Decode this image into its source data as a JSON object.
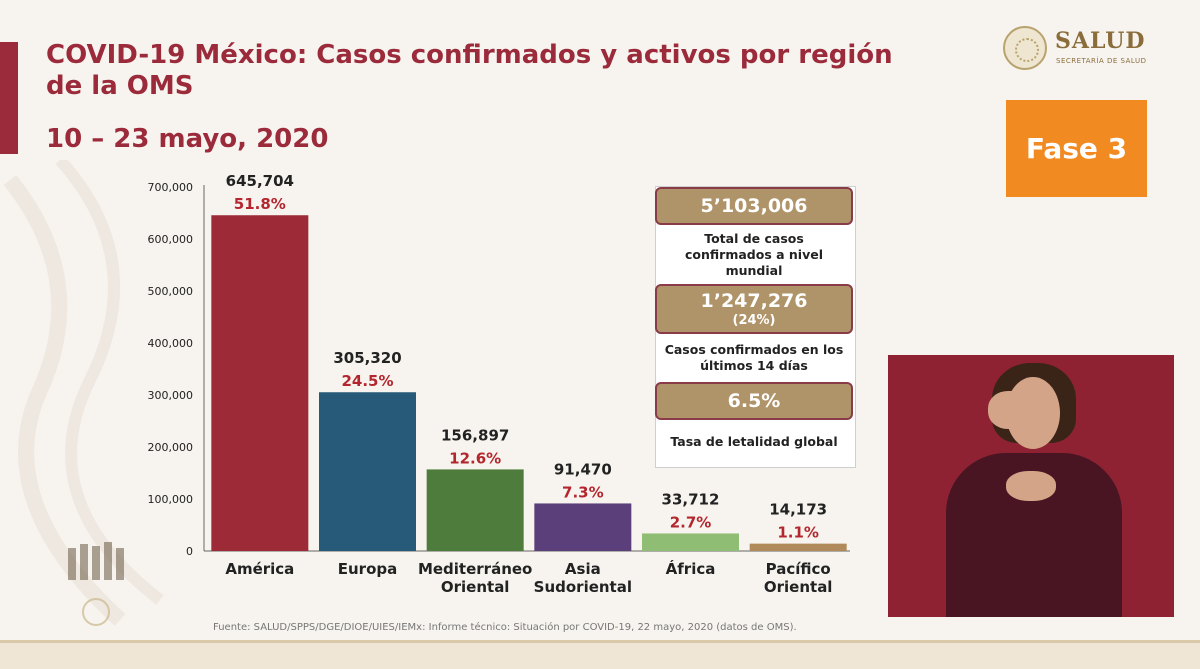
{
  "header": {
    "title": "COVID-19 México: Casos confirmados y activos por región de la OMS",
    "subtitle": "10 – 23 mayo, 2020"
  },
  "brand": {
    "logo_text": "SALUD",
    "logo_subtext": "SECRETARÍA DE SALUD",
    "phase_label": "Fase 3"
  },
  "colors": {
    "title": "#9b2a3b",
    "phase_bg": "#f28a22",
    "pill_bg": "#b09469",
    "pill_border": "#8a3b48",
    "percent_text": "#b3262e",
    "video_bg": "#8e2233"
  },
  "chart_data": {
    "type": "bar",
    "title": "COVID-19 México: Casos confirmados y activos por región de la OMS",
    "xlabel": "",
    "ylabel": "",
    "ylim": [
      0,
      700000
    ],
    "yticks": [
      0,
      100000,
      200000,
      300000,
      400000,
      500000,
      600000,
      700000
    ],
    "ytick_labels": [
      "0",
      "100,000",
      "200,000",
      "300,000",
      "400,000",
      "500,000",
      "600,000",
      "700,000"
    ],
    "categories": [
      {
        "line1": "América",
        "line2": ""
      },
      {
        "line1": "Europa",
        "line2": ""
      },
      {
        "line1": "Mediterráneo",
        "line2": "Oriental"
      },
      {
        "line1": "Asia",
        "line2": "Sudoriental"
      },
      {
        "line1": "África",
        "line2": ""
      },
      {
        "line1": "Pacífico",
        "line2": "Oriental"
      }
    ],
    "values": [
      645704,
      305320,
      156897,
      91470,
      33712,
      14173
    ],
    "value_labels": [
      "645,704",
      "305,320",
      "156,897",
      "91,470",
      "33,712",
      "14,173"
    ],
    "percent_labels": [
      "51.8%",
      "24.5%",
      "12.6%",
      "7.3%",
      "2.7%",
      "1.1%"
    ],
    "bar_colors": [
      "#9c2b37",
      "#275a78",
      "#4d7c3c",
      "#5b3f7a",
      "#8ebd73",
      "#b08a5a"
    ],
    "grid": false,
    "legend": "none"
  },
  "stats": {
    "global_total": "5’103,006",
    "global_total_caption": "Total de casos confirmados a nivel mundial",
    "recent_total": "1’247,276",
    "recent_pct": "(24%)",
    "recent_caption": "Casos confirmados en los últimos 14 días",
    "lethality": "6.5%",
    "lethality_caption": "Tasa de letalidad global"
  },
  "source": "Fuente: SALUD/SPPS/DGE/DIOE/UIES/IEMx: Informe técnico: Situación por COVID-19, 22 mayo, 2020 (datos de OMS)."
}
